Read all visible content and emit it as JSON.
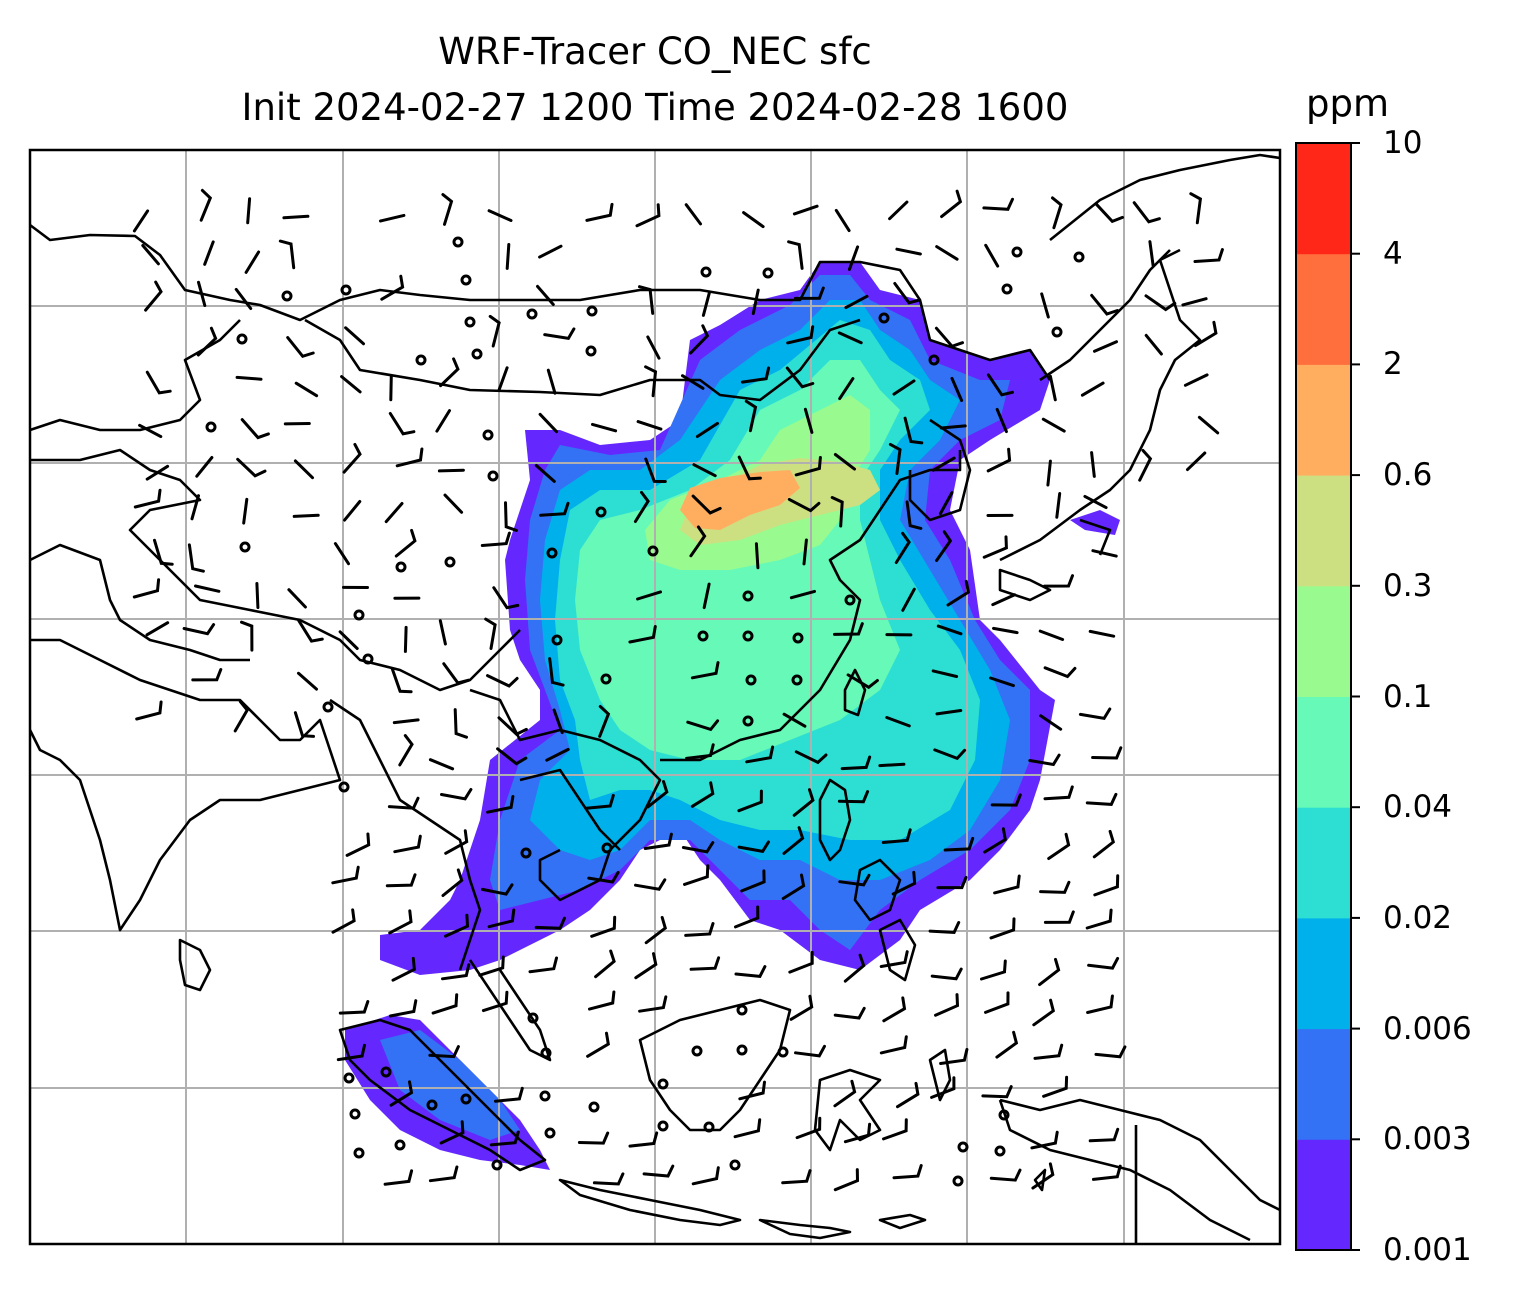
{
  "title": {
    "line1": "WRF-Tracer CO_NEC sfc",
    "line2": "Init 2024-02-27 1200 Time 2024-02-28 1600"
  },
  "colorbar": {
    "unit": "ppm",
    "levels": [
      "0.001",
      "0.003",
      "0.006",
      "0.02",
      "0.04",
      "0.1",
      "0.3",
      "0.6",
      "2",
      "4",
      "10"
    ],
    "colors": [
      "#6428ff",
      "#3372f5",
      "#00b0eb",
      "#2ddfd3",
      "#66f9b7",
      "#99fb8f",
      "#cde081",
      "#ffae60",
      "#ff6f3e",
      "#ff2717"
    ]
  },
  "map": {
    "type": "filled-contour tracer concentration with wind barbs",
    "background": "#ffffff",
    "grid_color": "#b0b0b0",
    "coastline_color": "#000000"
  }
}
